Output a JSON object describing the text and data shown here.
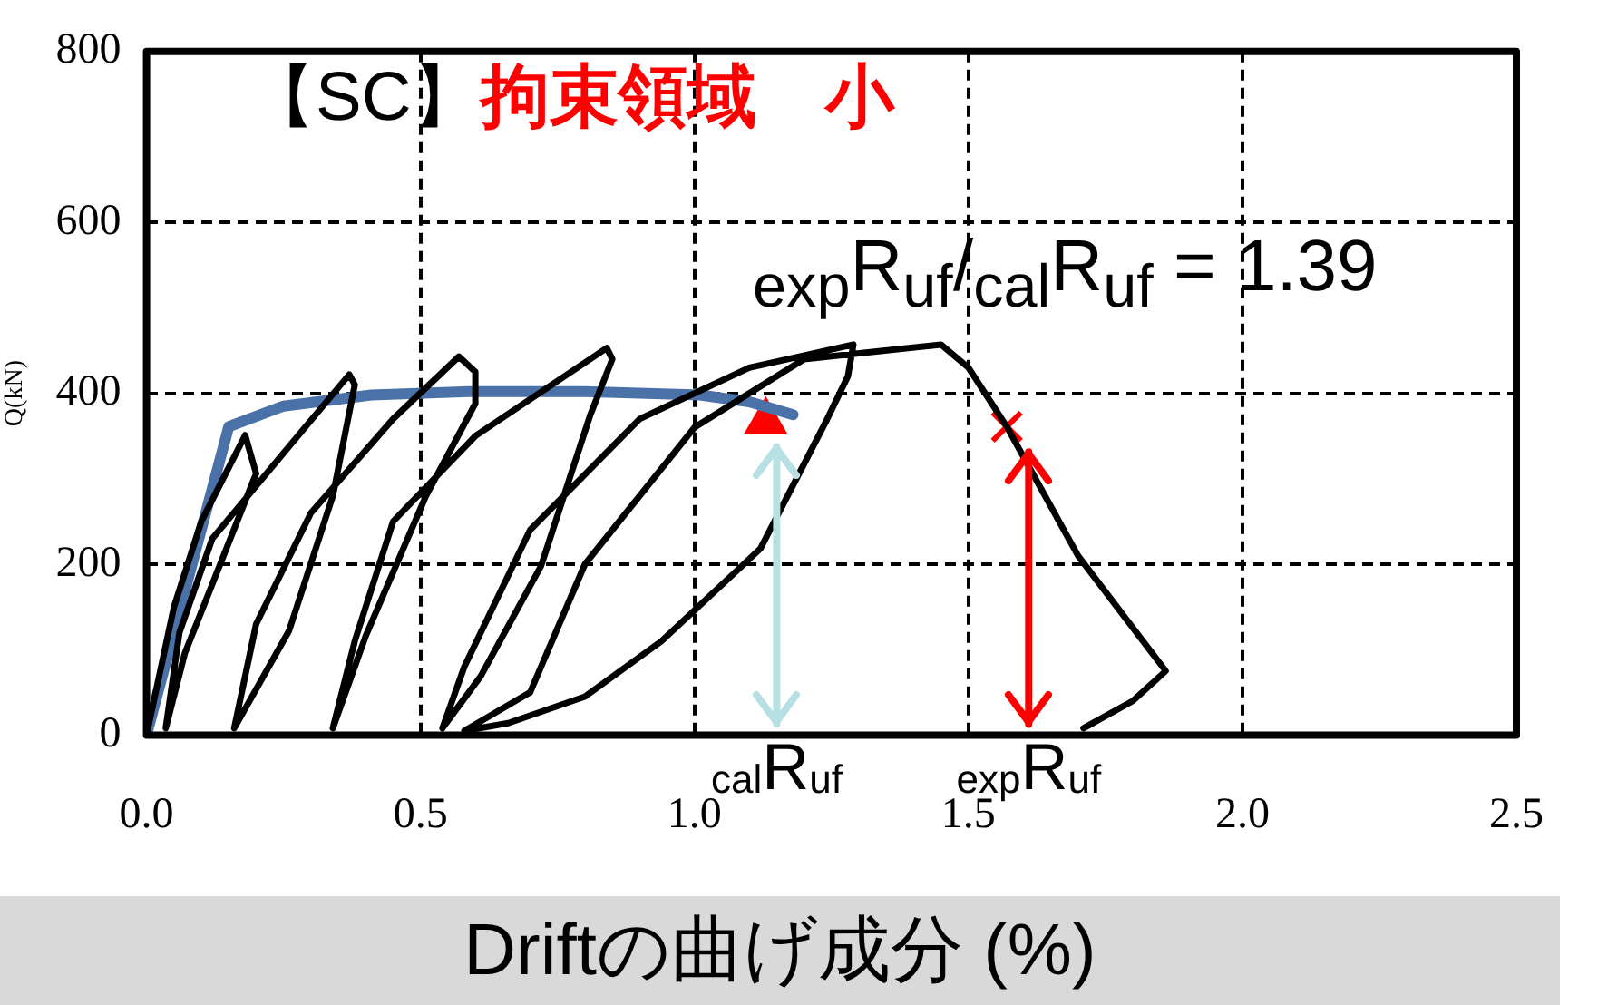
{
  "chart_data": {
    "type": "line",
    "title": "【SC】",
    "subtitle": "拘束領域　小",
    "xlabel": "Driftの曲げ成分 (%)",
    "ylabel": "Q(kN)",
    "annotations": [
      "$_{exp}$R$_{uf}$/$_{cal}$R$_{uf}$ = 1.39"
    ],
    "xlim": [
      0,
      2.5
    ],
    "xticks": [
      {
        "value": 0,
        "label": "0.0"
      },
      {
        "value": 0.5,
        "label": "0.5"
      },
      {
        "value": 1,
        "label": "1.0"
      },
      {
        "value": 1.5,
        "label": "1.5"
      },
      {
        "value": 2,
        "label": "2.0"
      },
      {
        "value": 2.5,
        "label": "2.5"
      }
    ],
    "ylim": [
      0,
      800
    ],
    "yticks": [
      0,
      200,
      400,
      600,
      800
    ],
    "grid": true,
    "line_style": "solid",
    "marker": "none",
    "series": [
      {
        "color": "#000000",
        "x": [
          0,
          0.05,
          0.1,
          0.18,
          0.2,
          0.07,
          0.035,
          0.06,
          0.12,
          0.25,
          0.37,
          0.38,
          0.34,
          0.26,
          0.16,
          0.2,
          0.3,
          0.45,
          0.57,
          0.6,
          0.6,
          0.51,
          0.4,
          0.34,
          0.38,
          0.45,
          0.6,
          0.84,
          0.85,
          0.81,
          0.72,
          0.61,
          0.54,
          0.58,
          0.7,
          0.9,
          1.1,
          1.29,
          1.28,
          1.24,
          1.12,
          0.94,
          0.8,
          0.66,
          0.58,
          0.7,
          0.8,
          1,
          1.2,
          1.45,
          1.5,
          1.57,
          1.7,
          1.86,
          1.8,
          1.71
        ],
        "values": [
          0,
          150,
          250,
          351,
          306,
          96,
          8,
          120,
          230,
          330,
          422,
          410,
          280,
          122,
          8,
          130,
          260,
          370,
          443,
          425,
          388,
          280,
          116,
          8,
          110,
          250,
          350,
          453,
          440,
          375,
          198,
          69,
          8,
          80,
          240,
          370,
          430,
          457,
          420,
          367,
          218,
          110,
          45,
          14,
          5,
          50,
          200,
          360,
          440,
          457,
          430,
          361,
          210,
          75,
          40,
          8
        ]
      },
      {
        "color": "#4a72a8",
        "x": [
          0,
          0.15,
          0.25,
          0.41,
          0.59,
          0.8,
          1.01,
          1.1,
          1.18
        ],
        "values": [
          0,
          361,
          385,
          398,
          402,
          402,
          398,
          390,
          375
        ]
      },
      {
        "type": "scatter",
        "color": "#ff0000",
        "marker": "triangle",
        "x": [
          1.13
        ],
        "values": [
          367
        ]
      },
      {
        "type": "scatter",
        "color": "#ff0000",
        "marker": "cross",
        "x": [
          1.57
        ],
        "values": [
          361
        ]
      }
    ],
    "ref_lines": [
      {
        "axis": "x",
        "value": 1.15,
        "label": "$_{cal}$R$_{uf}$",
        "color": "#b7e0e4"
      },
      {
        "axis": "x",
        "value": 1.61,
        "label": "$_{exp}$R$_{uf}$",
        "color": "#ff0000"
      }
    ]
  }
}
